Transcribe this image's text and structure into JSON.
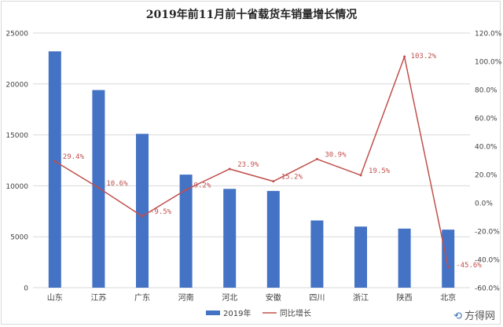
{
  "title": "2019年前11月前十省载货车销量增长情况",
  "watermark": "方得网",
  "colors": {
    "bar": "#4472C4",
    "line": "#C0504D",
    "grid": "#d9d9d9",
    "axis_text": "#404040"
  },
  "chart_data": {
    "type": "bar+line",
    "title": "2019年前11月前十省载货车销量增长情况",
    "categories": [
      "山东",
      "江苏",
      "广东",
      "河南",
      "河北",
      "安徽",
      "四川",
      "浙江",
      "陕西",
      "北京"
    ],
    "series": [
      {
        "name": "2019年",
        "type": "bar",
        "axis": "left",
        "values": [
          23200,
          19400,
          15100,
          11100,
          9700,
          9500,
          6600,
          6000,
          5800,
          5700
        ]
      },
      {
        "name": "同比增长",
        "type": "line",
        "axis": "right",
        "values": [
          29.4,
          10.6,
          -9.5,
          9.2,
          23.9,
          15.2,
          30.9,
          19.5,
          103.2,
          -45.6
        ],
        "labels": [
          "29.4%",
          "10.6%",
          "-9.5%",
          "9.2%",
          "23.9%",
          "15.2%",
          "30.9%",
          "19.5%",
          "103.2%",
          "-45.6%"
        ]
      }
    ],
    "y_left": {
      "min": 0,
      "max": 25000,
      "ticks": [
        "0",
        "5000",
        "10000",
        "15000",
        "20000",
        "25000"
      ]
    },
    "y_right": {
      "min": -60,
      "max": 120,
      "ticks": [
        "-60.0%",
        "-40.0%",
        "-20.0%",
        "0.0%",
        "20.0%",
        "40.0%",
        "60.0%",
        "80.0%",
        "100.0%",
        "120.0%"
      ]
    },
    "grid": true,
    "legend_position": "bottom"
  }
}
